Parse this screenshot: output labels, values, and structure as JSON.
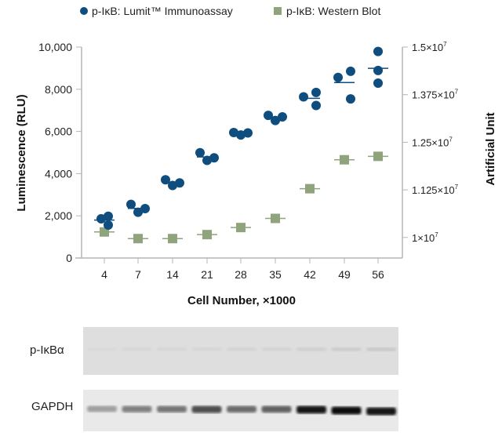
{
  "chart_data": {
    "type": "scatter",
    "xlabel": "Cell Number, ×1000",
    "ylabel": "Luminescence (RLU)",
    "y2label": "Artificial Unit",
    "categories": [
      "4",
      "7",
      "14",
      "21",
      "28",
      "35",
      "42",
      "49",
      "56"
    ],
    "ylim": [
      0,
      10000
    ],
    "yticks": [
      "0",
      "2,000",
      "4,000",
      "6,000",
      "8,000",
      "10,000"
    ],
    "ytick_values": [
      0,
      2000,
      4000,
      6000,
      8000,
      10000
    ],
    "y2lim": [
      9460000,
      15000000
    ],
    "y2ticks": [
      {
        "base": "1×10",
        "exp": "7",
        "value": 10000000
      },
      {
        "base": "1.125×10",
        "exp": "7",
        "value": 11250000
      },
      {
        "base": "1.25×10",
        "exp": "7",
        "value": 12500000
      },
      {
        "base": "1.375×10",
        "exp": "7",
        "value": 13750000
      },
      {
        "base": "1.5×10",
        "exp": "7",
        "value": 15000000
      }
    ],
    "legend_placement": "top",
    "series": [
      {
        "name": "p-IκB: Lumit™ Immunoassay",
        "axis": "left",
        "marker": "circle",
        "color": "#0e4d7e",
        "replicates": [
          [
            1860,
            1980,
            1560
          ],
          [
            2540,
            2170,
            2340
          ],
          [
            3710,
            3440,
            3560
          ],
          [
            4990,
            4630,
            4750
          ],
          [
            5950,
            5830,
            5930
          ],
          [
            6760,
            6520,
            6690
          ],
          [
            7640,
            7850,
            7230
          ],
          [
            8560,
            8850,
            7540
          ],
          [
            9790,
            8890,
            8290
          ]
        ],
        "means": [
          1800,
          2350,
          3570,
          4790,
          5900,
          6660,
          7570,
          8320,
          8990
        ]
      },
      {
        "name": "p-IκB: Western Blot",
        "axis": "right",
        "marker": "square",
        "color": "#8fa37c",
        "values": [
          10144000,
          9970000,
          9970000,
          10075000,
          10260000,
          10500000,
          11280000,
          12040000,
          12130000
        ]
      }
    ]
  },
  "blot": {
    "rows": [
      {
        "label": "p-IκBα",
        "intensities": [
          0.05,
          0.08,
          0.1,
          0.12,
          0.14,
          0.16,
          0.2,
          0.26,
          0.28
        ]
      },
      {
        "label": "GAPDH",
        "intensities": [
          0.3,
          0.45,
          0.5,
          0.7,
          0.55,
          0.6,
          0.95,
          1.0,
          0.98
        ]
      }
    ]
  }
}
